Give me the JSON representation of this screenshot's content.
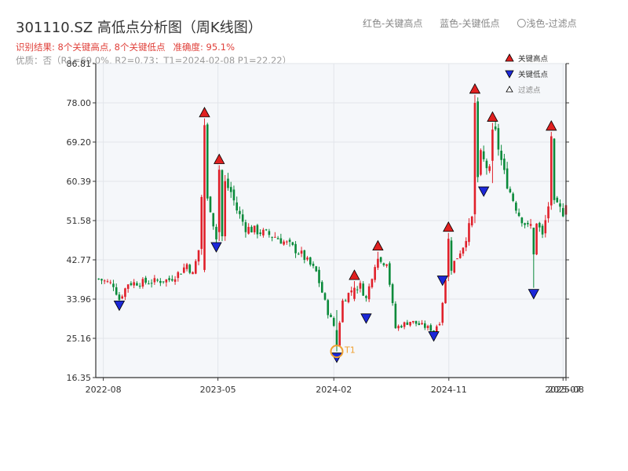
{
  "header": {
    "title": "301110.SZ 高低点分析图（周K线图）",
    "result": "识别结果: 8个关键高点, 8个关键低点",
    "accuracy": "准确度: 95.1%",
    "quality": "优质：否（R1=69.0%, R2=0.73；T1=2024-02-08 P1=22.22）",
    "legend_high": "红色-关键高点",
    "legend_low": "蓝色-关键低点",
    "legend_filtered": "〇浅色-过滤点"
  },
  "chart_data": {
    "type": "candlestick",
    "ylim": [
      16.35,
      86.81
    ],
    "yticks": [
      "16.35",
      "25.16",
      "33.96",
      "42.77",
      "51.58",
      "60.39",
      "69.20",
      "78.00",
      "86.81"
    ],
    "x_start": "2022-07-14",
    "x_end": "2025-08-07",
    "xticks": [
      {
        "date": "2022-08-01",
        "label": "2022-08"
      },
      {
        "date": "2023-05-01",
        "label": "2023-05"
      },
      {
        "date": "2024-02-01",
        "label": "2024-02"
      },
      {
        "date": "2024-11-01",
        "label": "2024-11"
      },
      {
        "date": "2025-07-31",
        "label": "2025-07"
      },
      {
        "date": "2025-08-07",
        "label": "2025-08"
      }
    ],
    "price_path": [
      [
        "2022-07-21",
        38.5
      ],
      [
        "2022-08-25",
        37.2
      ],
      [
        "2022-09-08",
        33.9
      ],
      [
        "2022-09-29",
        37.5
      ],
      [
        "2022-11-17",
        37.8
      ],
      [
        "2023-01-05",
        38.3
      ],
      [
        "2023-02-02",
        40.2
      ],
      [
        "2023-02-16",
        41.8
      ],
      [
        "2023-03-02",
        39.5
      ],
      [
        "2023-03-16",
        45.0
      ],
      [
        "2023-03-23",
        57.0
      ],
      [
        "2023-04-06",
        56.0
      ],
      [
        "2023-04-13",
        54.5
      ],
      [
        "2023-04-27",
        47.5
      ],
      [
        "2023-05-11",
        48.0
      ],
      [
        "2023-05-18",
        60.0
      ],
      [
        "2023-06-01",
        58.0
      ],
      [
        "2023-06-15",
        54.0
      ],
      [
        "2023-07-06",
        50.0
      ],
      [
        "2023-09-14",
        48.0
      ],
      [
        "2023-10-19",
        46.0
      ],
      [
        "2023-11-16",
        44.0
      ],
      [
        "2023-12-21",
        40.0
      ],
      [
        "2024-01-18",
        31.0
      ],
      [
        "2024-02-01",
        28.0
      ],
      [
        "2024-02-08",
        24.5
      ],
      [
        "2024-02-22",
        33.5
      ],
      [
        "2024-03-14",
        36.0
      ],
      [
        "2024-04-04",
        37.0
      ],
      [
        "2024-04-18",
        34.0
      ],
      [
        "2024-05-09",
        42.0
      ],
      [
        "2024-06-06",
        42.5
      ],
      [
        "2024-06-27",
        27.5
      ],
      [
        "2024-08-01",
        29.0
      ],
      [
        "2024-09-26",
        27.0
      ],
      [
        "2024-10-10",
        29.0
      ],
      [
        "2024-10-24",
        38.0
      ],
      [
        "2024-11-07",
        41.0
      ],
      [
        "2024-12-05",
        46.0
      ],
      [
        "2024-12-26",
        52.0
      ],
      [
        "2025-01-16",
        66.0
      ],
      [
        "2025-02-06",
        62.5
      ],
      [
        "2025-02-20",
        71.0
      ],
      [
        "2025-03-13",
        62.0
      ],
      [
        "2025-03-27",
        58.0
      ],
      [
        "2025-04-17",
        53.0
      ],
      [
        "2025-05-08",
        50.0
      ],
      [
        "2025-05-29",
        51.5
      ],
      [
        "2025-06-12",
        48.0
      ],
      [
        "2025-06-26",
        55.0
      ],
      [
        "2025-07-10",
        55.0
      ],
      [
        "2025-07-31",
        53.5
      ],
      [
        "2025-08-07",
        56.0
      ]
    ],
    "candles_override": [
      {
        "date": "2023-03-30",
        "open": 40.5,
        "close": 73.0,
        "high": 74.5,
        "low": 40.0
      },
      {
        "date": "2023-05-04",
        "open": 49.0,
        "close": 63.0,
        "high": 64.0,
        "low": 47.0
      },
      {
        "date": "2024-02-08",
        "open": 27.0,
        "close": 23.5,
        "high": 31.5,
        "low": 22.22
      },
      {
        "date": "2024-03-21",
        "open": 34.0,
        "close": 36.5,
        "high": 38.0,
        "low": 33.5
      },
      {
        "date": "2024-05-16",
        "open": 41.0,
        "close": 43.0,
        "high": 44.6,
        "low": 40.5
      },
      {
        "date": "2024-10-31",
        "open": 39.0,
        "close": 47.5,
        "high": 48.8,
        "low": 38.0
      },
      {
        "date": "2025-01-02",
        "open": 53.0,
        "close": 78.0,
        "high": 79.8,
        "low": 51.0
      },
      {
        "date": "2025-02-13",
        "open": 65.0,
        "close": 72.0,
        "high": 73.5,
        "low": 60.0
      },
      {
        "date": "2025-05-22",
        "open": 50.0,
        "close": 44.0,
        "high": 45.0,
        "low": 36.5
      },
      {
        "date": "2025-07-03",
        "open": 55.0,
        "close": 70.5,
        "high": 71.5,
        "low": 54.0
      }
    ],
    "key_highs": [
      {
        "date": "2023-03-30",
        "value": 74.5
      },
      {
        "date": "2023-05-04",
        "value": 64.0
      },
      {
        "date": "2024-03-21",
        "value": 38.0
      },
      {
        "date": "2024-05-16",
        "value": 44.6
      },
      {
        "date": "2024-10-31",
        "value": 48.8
      },
      {
        "date": "2025-01-02",
        "value": 79.8
      },
      {
        "date": "2025-02-13",
        "value": 73.5
      },
      {
        "date": "2025-07-03",
        "value": 71.5
      }
    ],
    "key_lows": [
      {
        "date": "2022-09-08",
        "value": 33.9
      },
      {
        "date": "2023-04-27",
        "value": 47.0
      },
      {
        "date": "2024-02-08",
        "value": 22.22
      },
      {
        "date": "2024-04-18",
        "value": 31.0
      },
      {
        "date": "2024-09-26",
        "value": 27.0
      },
      {
        "date": "2024-10-17",
        "value": 39.5
      },
      {
        "date": "2025-01-23",
        "value": 59.5
      },
      {
        "date": "2025-05-22",
        "value": 36.5
      }
    ],
    "t1": {
      "date": "2024-02-08",
      "value": 22.22,
      "label": "T1"
    },
    "legend": {
      "high": "关键高点",
      "low": "关键低点",
      "filtered": "过滤点"
    },
    "grid": true,
    "colors": {
      "up": "#e0202a",
      "down": "#0a8a3a",
      "high_marker": "#e02020",
      "low_marker": "#1c28d8",
      "t1": "#f0a030",
      "plot_bg": "#f5f7fa",
      "grid": "#e2e5ea",
      "axis": "#333333"
    }
  }
}
